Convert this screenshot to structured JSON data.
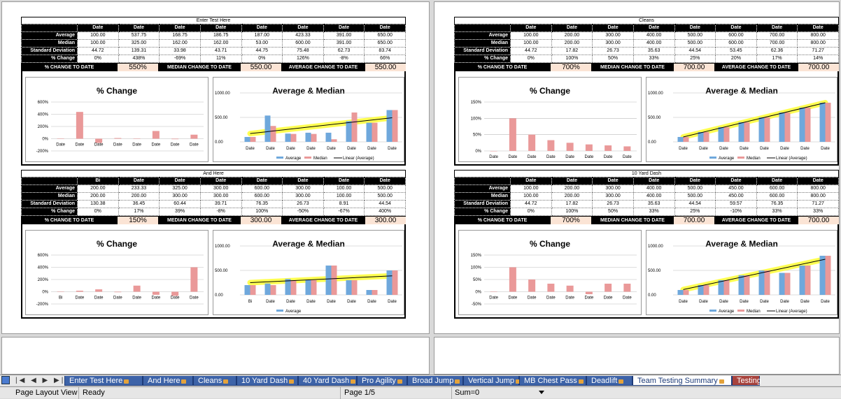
{
  "blocks": [
    {
      "title": "Enter Test Here",
      "headers": [
        "Date",
        "Date",
        "Date",
        "Date",
        "Date",
        "Date",
        "Date",
        "Date"
      ],
      "rows": [
        {
          "label": "Average",
          "values": [
            "100.00",
            "537.75",
            "168.75",
            "186.75",
            "187.00",
            "423.33",
            "391.00",
            "650.00"
          ]
        },
        {
          "label": "Median",
          "values": [
            "100.00",
            "325.00",
            "162.00",
            "162.00",
            "53.00",
            "600.00",
            "391.00",
            "650.00"
          ]
        },
        {
          "label": "Standard Deviation",
          "values": [
            "44.72",
            "139.31",
            "33.98",
            "43.71",
            "44.75",
            "75.48",
            "62.73",
            "83.74"
          ]
        },
        {
          "label": "% Change",
          "values": [
            "0%",
            "438%",
            "-69%",
            "11%",
            "0%",
            "126%",
            "-8%",
            "66%"
          ]
        }
      ],
      "change_label": "% CHANGE TO DATE",
      "change_value": "550%",
      "median_label": "MEDIAN CHANGE TO DATE",
      "median_value": "550.00",
      "avg_label": "AVERAGE CHANGE TO DATE",
      "avg_value": "550.00",
      "pct_chart": {
        "title": "% Change",
        "yticks": [
          "600%",
          "400%",
          "200%",
          "0%",
          "-200%"
        ],
        "ymin": -200,
        "ymax": 600,
        "cats": [
          "Date",
          "Date",
          "Date",
          "Date",
          "Date",
          "Date",
          "Date",
          "Date"
        ],
        "values": [
          0,
          438,
          -69,
          11,
          0,
          126,
          -8,
          66
        ]
      },
      "am_chart": {
        "title": "Average & Median",
        "yticks": [
          "1000.00",
          "500.00",
          "0.00"
        ],
        "ymax": 1000,
        "cats": [
          "Date",
          "Date",
          "Date",
          "Date",
          "Date",
          "Date",
          "Date",
          "Date"
        ],
        "average": [
          100,
          537.75,
          168.75,
          186.75,
          187,
          423.33,
          391,
          650
        ],
        "median": [
          100,
          325,
          162,
          162,
          53,
          600,
          391,
          650
        ],
        "legend": [
          "Average",
          "Median",
          "Linear (Average)"
        ]
      }
    },
    {
      "title": "Cleans",
      "headers": [
        "Date",
        "Date",
        "Date",
        "Date",
        "Date",
        "Date",
        "Date",
        "Date"
      ],
      "rows": [
        {
          "label": "Average",
          "values": [
            "100.00",
            "200.00",
            "300.00",
            "400.00",
            "500.00",
            "600.00",
            "700.00",
            "800.00"
          ]
        },
        {
          "label": "Median",
          "values": [
            "100.00",
            "200.00",
            "300.00",
            "400.00",
            "500.00",
            "600.00",
            "700.00",
            "800.00"
          ]
        },
        {
          "label": "Standard Deviation",
          "values": [
            "44.72",
            "17.82",
            "26.73",
            "35.63",
            "44.54",
            "53.45",
            "62.36",
            "71.27"
          ]
        },
        {
          "label": "% Change",
          "values": [
            "0%",
            "100%",
            "50%",
            "33%",
            "25%",
            "20%",
            "17%",
            "14%"
          ]
        }
      ],
      "change_label": "% CHANGE TO DATE",
      "change_value": "700%",
      "median_label": "MEDIAN CHANGE TO DATE",
      "median_value": "700.00",
      "avg_label": "AVERAGE CHANGE TO DATE",
      "avg_value": "700.00",
      "pct_chart": {
        "title": "% Change",
        "yticks": [
          "150%",
          "100%",
          "50%",
          "0%"
        ],
        "ymin": 0,
        "ymax": 150,
        "cats": [
          "Date",
          "Date",
          "Date",
          "Date",
          "Date",
          "Date",
          "Date",
          "Date"
        ],
        "values": [
          0,
          100,
          50,
          33,
          25,
          20,
          17,
          14
        ]
      },
      "am_chart": {
        "title": "Average & Median",
        "yticks": [
          "1000.00",
          "500.00",
          "0.00"
        ],
        "ymax": 1000,
        "cats": [
          "Date",
          "Date",
          "Date",
          "Date",
          "Date",
          "Date",
          "Date",
          "Date"
        ],
        "average": [
          100,
          200,
          300,
          400,
          500,
          600,
          700,
          800
        ],
        "median": [
          100,
          200,
          300,
          400,
          500,
          600,
          700,
          800
        ],
        "legend": [
          "Average",
          "Median",
          "Linear (Average)"
        ]
      }
    },
    {
      "title": "And Here",
      "headers": [
        "Bi",
        "Date",
        "Date",
        "Date",
        "Date",
        "Date",
        "Date",
        "Date"
      ],
      "rows": [
        {
          "label": "Average",
          "values": [
            "200.00",
            "233.33",
            "325.00",
            "300.00",
            "600.00",
            "300.00",
            "100.00",
            "500.00"
          ]
        },
        {
          "label": "Median",
          "values": [
            "200.00",
            "200.00",
            "300.00",
            "300.00",
            "600.00",
            "300.00",
            "100.00",
            "500.00"
          ]
        },
        {
          "label": "Standard Deviation",
          "values": [
            "130.38",
            "36.45",
            "60.44",
            "39.71",
            "76.35",
            "26.73",
            "8.91",
            "44.54"
          ]
        },
        {
          "label": "% Change",
          "values": [
            "0%",
            "17%",
            "39%",
            "-8%",
            "100%",
            "-50%",
            "-67%",
            "400%"
          ]
        }
      ],
      "change_label": "% CHANGE TO DATE",
      "change_value": "150%",
      "median_label": "MEDIAN CHANGE TO DATE",
      "median_value": "300.00",
      "avg_label": "AVERAGE CHANGE TO DATE",
      "avg_value": "300.00",
      "pct_chart": {
        "title": "% Change",
        "yticks": [
          "600%",
          "400%",
          "200%",
          "0%",
          "-200%"
        ],
        "ymin": -200,
        "ymax": 600,
        "cats": [
          "Bi",
          "Date",
          "Date",
          "Date",
          "Date",
          "Date",
          "Date",
          "Date"
        ],
        "values": [
          0,
          17,
          39,
          -8,
          100,
          -50,
          -67,
          400
        ]
      },
      "am_chart": {
        "title": "Average & Median",
        "yticks": [
          "1000.00",
          "500.00",
          "0.00"
        ],
        "ymax": 1000,
        "cats": [
          "Bi",
          "Date",
          "Date",
          "Date",
          "Date",
          "Date",
          "Date",
          "Date"
        ],
        "average": [
          200,
          233.33,
          325,
          300,
          600,
          300,
          100,
          500
        ],
        "median": [
          200,
          200,
          300,
          300,
          600,
          300,
          100,
          500
        ],
        "legend": [
          "Average"
        ]
      }
    },
    {
      "title": "10 Yard Dash",
      "headers": [
        "Date",
        "Date",
        "Date",
        "Date",
        "Date",
        "Date",
        "Date",
        "Date"
      ],
      "rows": [
        {
          "label": "Average",
          "values": [
            "100.00",
            "200.00",
            "300.00",
            "400.00",
            "500.00",
            "450.00",
            "600.00",
            "800.00"
          ]
        },
        {
          "label": "Median",
          "values": [
            "100.00",
            "200.00",
            "300.00",
            "400.00",
            "500.00",
            "450.00",
            "600.00",
            "800.00"
          ]
        },
        {
          "label": "Standard Deviation",
          "values": [
            "44.72",
            "17.82",
            "26.73",
            "35.63",
            "44.54",
            "59.57",
            "76.35",
            "71.27"
          ]
        },
        {
          "label": "% Change",
          "values": [
            "0%",
            "100%",
            "50%",
            "33%",
            "25%",
            "-10%",
            "33%",
            "33%"
          ]
        }
      ],
      "change_label": "% CHANGE TO DATE",
      "change_value": "700%",
      "median_label": "MEDIAN CHANGE TO DATE",
      "median_value": "700.00",
      "avg_label": "AVERAGE CHANGE TO DATE",
      "avg_value": "700.00",
      "pct_chart": {
        "title": "% Change",
        "yticks": [
          "150%",
          "100%",
          "50%",
          "0%",
          "-50%"
        ],
        "ymin": -50,
        "ymax": 150,
        "cats": [
          "Date",
          "Date",
          "Date",
          "Date",
          "Date",
          "Date",
          "Date",
          "Date"
        ],
        "values": [
          0,
          100,
          50,
          33,
          25,
          -10,
          33,
          33
        ]
      },
      "am_chart": {
        "title": "Average & Median",
        "yticks": [
          "1000.00",
          "500.00",
          "0.00"
        ],
        "ymax": 1000,
        "cats": [
          "Date",
          "Date",
          "Date",
          "Date",
          "Date",
          "Date",
          "Date",
          "Date"
        ],
        "average": [
          100,
          200,
          300,
          400,
          500,
          450,
          600,
          800
        ],
        "median": [
          100,
          200,
          300,
          400,
          500,
          450,
          600,
          800
        ],
        "legend": [
          "Average",
          "Median",
          "Linear (Average)"
        ]
      }
    }
  ],
  "tabs": [
    {
      "label": "Enter Test Here",
      "locked": true
    },
    {
      "label": "And Here",
      "locked": true
    },
    {
      "label": "Cleans",
      "locked": true
    },
    {
      "label": "10 Yard Dash",
      "locked": true
    },
    {
      "label": "40 Yard Dash",
      "locked": true
    },
    {
      "label": "Pro Agility",
      "locked": true
    },
    {
      "label": "Broad Jump",
      "locked": true
    },
    {
      "label": "Vertical Jump",
      "locked": true
    },
    {
      "label": "MB Chest Pass",
      "locked": true
    },
    {
      "label": "Deadlift",
      "locked": true
    },
    {
      "label": "Team Testing Summary",
      "locked": true
    },
    {
      "label": "Testing",
      "locked": false
    }
  ],
  "nav_buttons": "|◀ ◀ ▶ ▶|",
  "status": {
    "view": "Page Layout View",
    "state": "Ready",
    "page": "Page 1/5",
    "sum": "Sum=0"
  },
  "colors": {
    "average": "#6fa8dc",
    "median": "#ea9999",
    "trend": "#000000",
    "highlight": "#ffff33",
    "tab": "#3d63a8"
  }
}
